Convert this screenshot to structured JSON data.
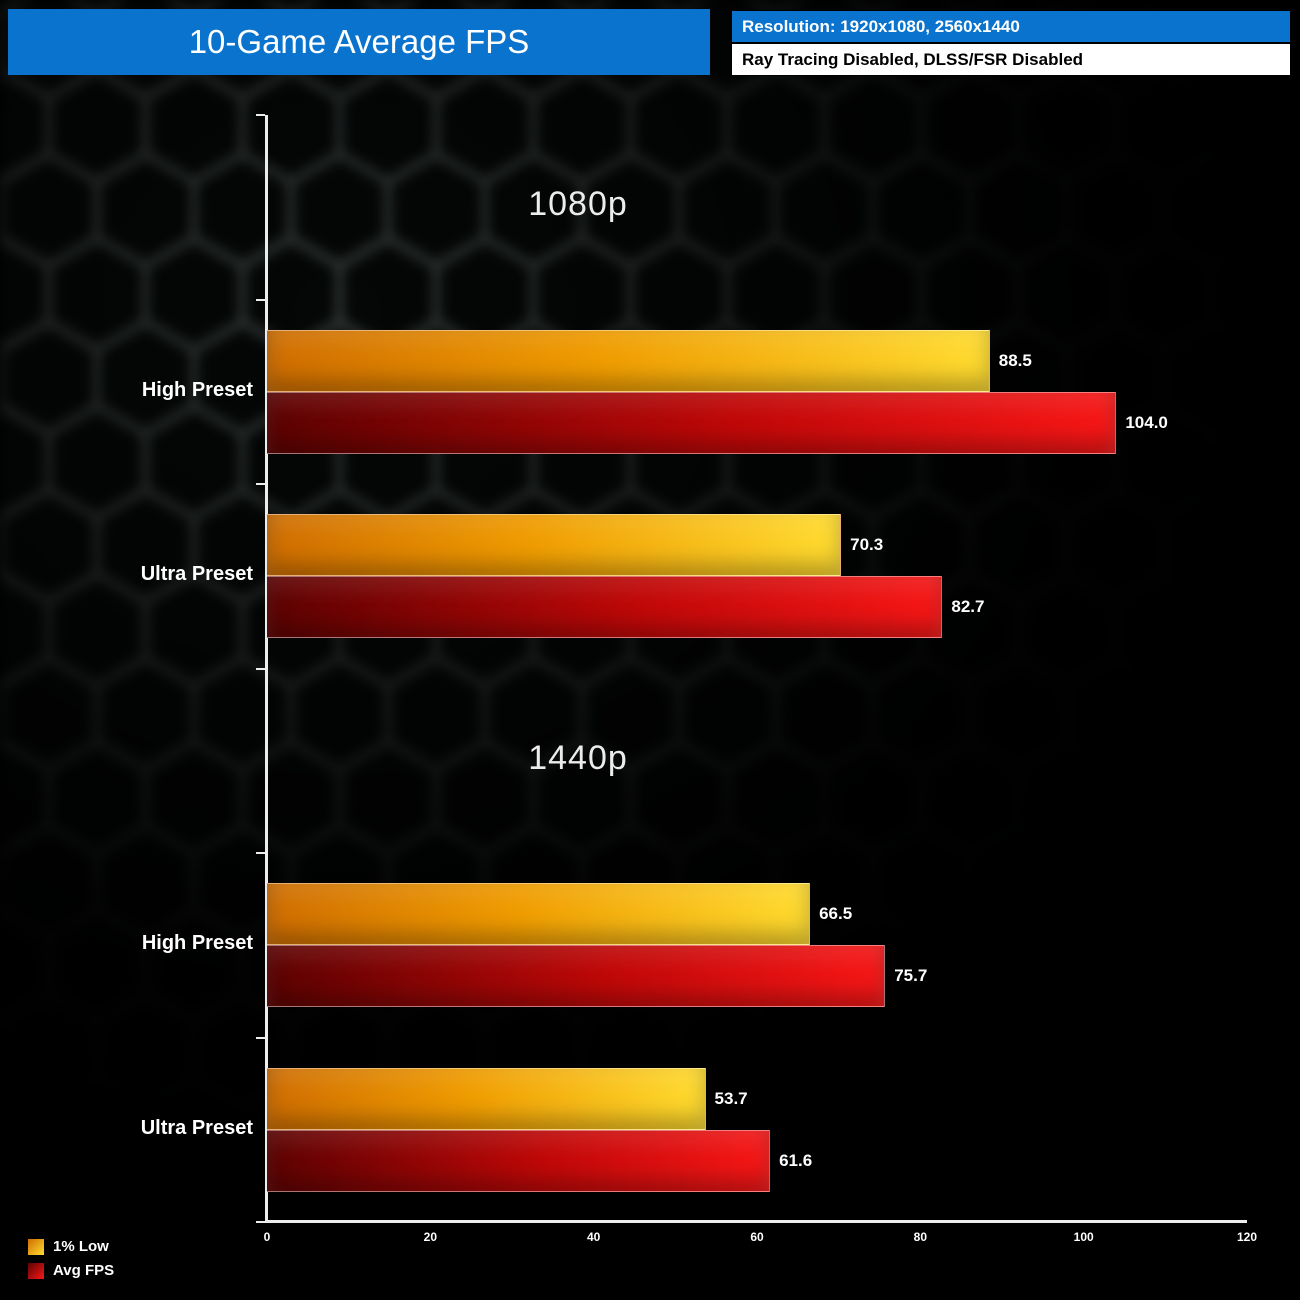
{
  "title": "10-Game Average FPS",
  "header": {
    "resolution_line": "Resolution: 1920x1080, 2560x1440",
    "settings_line": "Ray Tracing Disabled, DLSS/FSR Disabled"
  },
  "colors": {
    "header_blue": "#0a73cd",
    "low_gradient": [
      "#cf6d00",
      "#ffdc30"
    ],
    "avg_gradient": [
      "#5c0202",
      "#f81717"
    ],
    "axis": "#ededed",
    "text": "#ffffff"
  },
  "legend": [
    {
      "label": "1% Low",
      "series": "low"
    },
    {
      "label": "Avg FPS",
      "series": "avg"
    }
  ],
  "chart_data": {
    "type": "bar",
    "orientation": "horizontal",
    "title": "10-Game Average FPS",
    "xlabel": "FPS",
    "ylabel": "",
    "xlim": [
      0,
      120
    ],
    "xticks": [
      0,
      20,
      40,
      60,
      80,
      100,
      120
    ],
    "grid": false,
    "legend_position": "bottom-left",
    "series": [
      {
        "name": "1% Low"
      },
      {
        "name": "Avg FPS"
      }
    ],
    "sections": [
      {
        "label": "1080p",
        "groups": [
          {
            "category": "High Preset",
            "low": 88.5,
            "avg": 104.0
          },
          {
            "category": "Ultra Preset",
            "low": 70.3,
            "avg": 82.7
          }
        ]
      },
      {
        "label": "1440p",
        "groups": [
          {
            "category": "High Preset",
            "low": 66.5,
            "avg": 75.7
          },
          {
            "category": "Ultra Preset",
            "low": 53.7,
            "avg": 61.6
          }
        ]
      }
    ]
  }
}
